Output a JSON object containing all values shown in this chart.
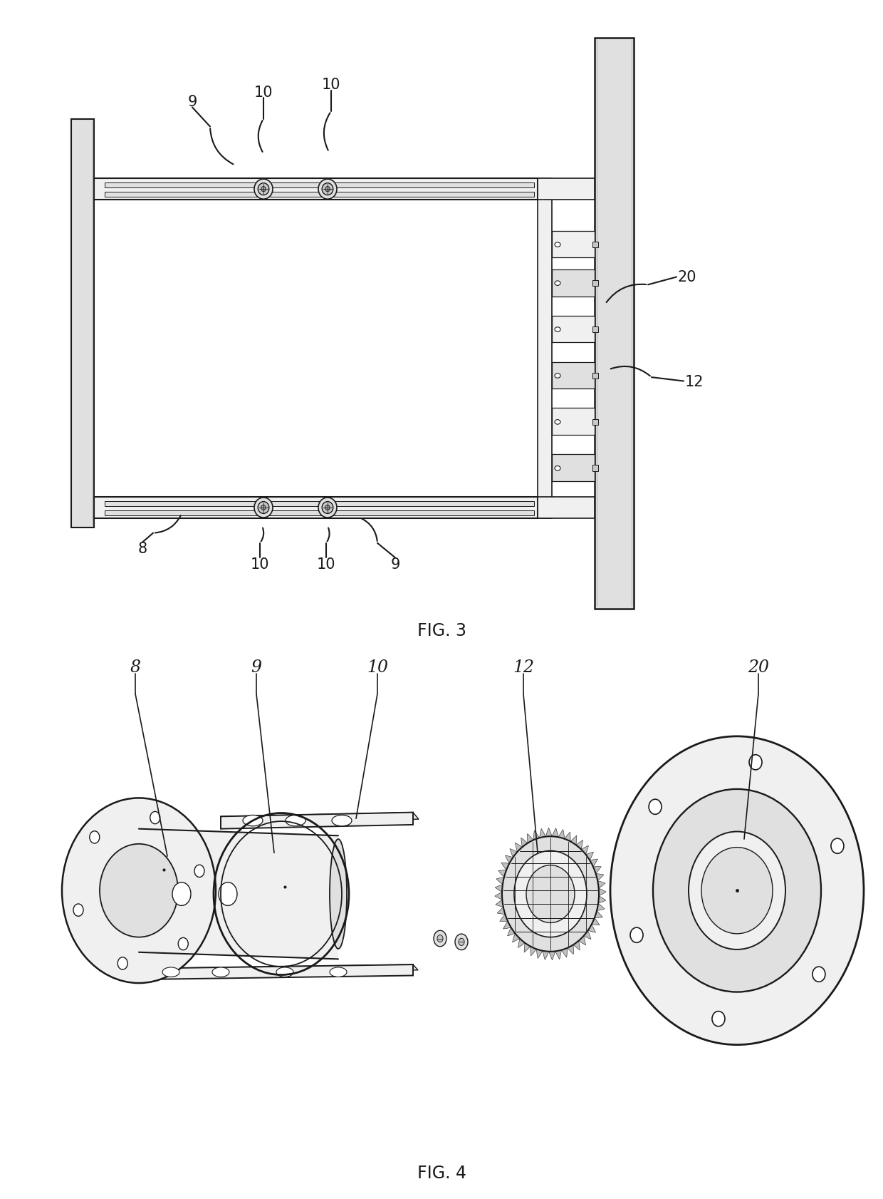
{
  "bg": "#ffffff",
  "lc": "#1a1a1a",
  "lc_thin": "#333333",
  "gray1": "#f0f0f0",
  "gray2": "#e0e0e0",
  "gray3": "#c8c8c8",
  "gray4": "#a8a8a8"
}
